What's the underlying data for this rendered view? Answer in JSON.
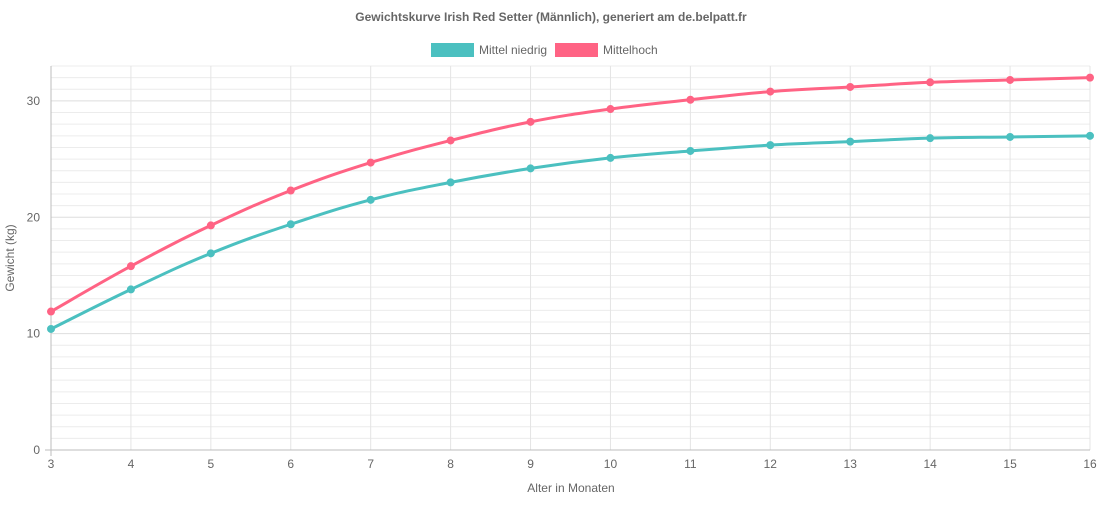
{
  "chart_data": {
    "type": "line",
    "title": "Gewichtskurve Irish Red Setter (Männlich), generiert am de.belpatt.fr",
    "xlabel": "Alter in Monaten",
    "ylabel": "Gewicht (kg)",
    "x": [
      3,
      4,
      5,
      6,
      7,
      8,
      9,
      10,
      11,
      12,
      13,
      14,
      15,
      16
    ],
    "xlim": [
      3,
      16
    ],
    "ylim": [
      0,
      33
    ],
    "y_ticks": [
      0,
      10,
      20,
      30
    ],
    "grid": true,
    "legend_position": "top",
    "series": [
      {
        "name": "Mittel niedrig",
        "color": "#4bc0c0",
        "values": [
          10.4,
          13.8,
          16.9,
          19.4,
          21.5,
          23.0,
          24.2,
          25.1,
          25.7,
          26.2,
          26.5,
          26.8,
          26.9,
          27.0
        ]
      },
      {
        "name": "Mittelhoch",
        "color": "#ff6384",
        "values": [
          11.9,
          15.8,
          19.3,
          22.3,
          24.7,
          26.6,
          28.2,
          29.3,
          30.1,
          30.8,
          31.2,
          31.6,
          31.8,
          32.0
        ]
      }
    ]
  }
}
